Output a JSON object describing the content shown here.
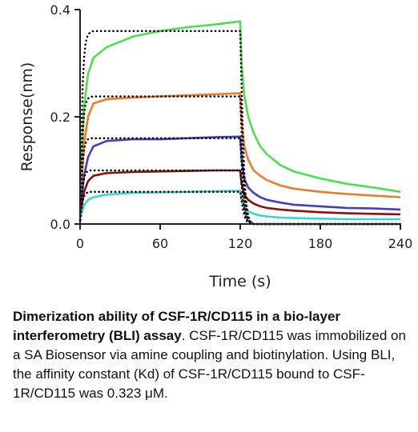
{
  "chart_data": {
    "type": "line",
    "xlabel": "Time (s)",
    "ylabel": "Response(nm)",
    "xlim": [
      0,
      240
    ],
    "ylim": [
      0,
      0.4
    ],
    "xticks": [
      "0",
      "60",
      "120",
      "180",
      "240"
    ],
    "yticks": [
      "0.0",
      "0.2",
      "0.4"
    ],
    "grid": false,
    "legend": "none",
    "series": [
      {
        "color": "#4de04d",
        "style": "solid",
        "x": [
          0,
          3,
          6,
          10,
          20,
          40,
          60,
          80,
          100,
          120,
          121,
          123,
          126,
          130,
          135,
          140,
          150,
          160,
          180,
          200,
          220,
          240
        ],
        "y": [
          0.05,
          0.22,
          0.28,
          0.31,
          0.33,
          0.35,
          0.36,
          0.367,
          0.372,
          0.378,
          0.3,
          0.24,
          0.2,
          0.17,
          0.145,
          0.13,
          0.11,
          0.098,
          0.085,
          0.075,
          0.068,
          0.06
        ]
      },
      {
        "color": "#f07a28",
        "style": "solid",
        "x": [
          0,
          3,
          6,
          10,
          20,
          40,
          60,
          80,
          100,
          120,
          121,
          123,
          126,
          130,
          135,
          140,
          150,
          160,
          180,
          200,
          220,
          240
        ],
        "y": [
          0.03,
          0.15,
          0.2,
          0.225,
          0.233,
          0.236,
          0.238,
          0.24,
          0.242,
          0.244,
          0.19,
          0.145,
          0.12,
          0.1,
          0.09,
          0.082,
          0.072,
          0.066,
          0.06,
          0.056,
          0.053,
          0.05
        ]
      },
      {
        "color": "#3f3fc4",
        "style": "solid",
        "x": [
          0,
          3,
          6,
          10,
          20,
          40,
          60,
          80,
          100,
          120,
          121,
          123,
          126,
          130,
          135,
          140,
          150,
          160,
          180,
          200,
          220,
          240
        ],
        "y": [
          0.02,
          0.09,
          0.125,
          0.145,
          0.155,
          0.158,
          0.158,
          0.16,
          0.162,
          0.163,
          0.12,
          0.085,
          0.068,
          0.058,
          0.05,
          0.045,
          0.04,
          0.036,
          0.033,
          0.03,
          0.029,
          0.027
        ]
      },
      {
        "color": "#8b1010",
        "style": "solid",
        "x": [
          0,
          3,
          6,
          10,
          20,
          40,
          60,
          80,
          100,
          120,
          121,
          123,
          126,
          130,
          135,
          140,
          150,
          160,
          180,
          200,
          220,
          240
        ],
        "y": [
          0.015,
          0.06,
          0.08,
          0.09,
          0.095,
          0.097,
          0.098,
          0.099,
          0.1,
          0.1,
          0.075,
          0.055,
          0.045,
          0.038,
          0.033,
          0.03,
          0.027,
          0.025,
          0.022,
          0.02,
          0.019,
          0.018
        ]
      },
      {
        "color": "#3fd4d4",
        "style": "solid",
        "x": [
          0,
          3,
          6,
          10,
          20,
          40,
          60,
          80,
          100,
          120,
          121,
          123,
          126,
          130,
          135,
          140,
          150,
          160,
          180,
          200,
          220,
          240
        ],
        "y": [
          0.01,
          0.035,
          0.045,
          0.05,
          0.055,
          0.058,
          0.059,
          0.06,
          0.061,
          0.062,
          0.045,
          0.032,
          0.024,
          0.019,
          0.016,
          0.014,
          0.012,
          0.011,
          0.01,
          0.009,
          0.009,
          0.009
        ]
      },
      {
        "color": "#000000",
        "style": "dotted",
        "x": [
          0,
          1,
          2,
          3,
          4,
          5,
          6,
          7,
          8,
          10,
          12,
          15,
          20,
          30,
          60,
          100,
          120,
          121,
          122,
          123,
          124,
          125,
          126,
          127,
          128,
          130,
          135,
          145,
          160,
          180,
          200,
          220,
          240
        ],
        "y": [
          0.0,
          0.16,
          0.26,
          0.31,
          0.335,
          0.347,
          0.353,
          0.356,
          0.358,
          0.36,
          0.36,
          0.36,
          0.36,
          0.36,
          0.36,
          0.36,
          0.36,
          0.26,
          0.17,
          0.1,
          0.055,
          0.03,
          0.015,
          0.008,
          0.004,
          0.0,
          0.0,
          0.0,
          0.0,
          0.0,
          0.0,
          0.0,
          0.0
        ]
      },
      {
        "color": "#000000",
        "style": "dotted",
        "x": [
          0,
          1,
          2,
          3,
          4,
          5,
          6,
          7,
          8,
          10,
          12,
          15,
          20,
          30,
          60,
          100,
          120,
          121,
          122,
          123,
          124,
          125,
          126,
          127,
          128,
          130,
          135,
          145,
          160,
          180,
          200,
          220,
          240
        ],
        "y": [
          0.0,
          0.105,
          0.17,
          0.205,
          0.222,
          0.23,
          0.234,
          0.236,
          0.237,
          0.238,
          0.238,
          0.238,
          0.238,
          0.238,
          0.238,
          0.238,
          0.238,
          0.17,
          0.11,
          0.066,
          0.037,
          0.02,
          0.01,
          0.005,
          0.003,
          0.0,
          0.0,
          0.0,
          0.0,
          0.0,
          0.0,
          0.0,
          0.0
        ]
      },
      {
        "color": "#000000",
        "style": "dotted",
        "x": [
          0,
          1,
          2,
          3,
          4,
          5,
          6,
          7,
          8,
          10,
          12,
          15,
          20,
          30,
          60,
          100,
          120,
          121,
          122,
          123,
          124,
          125,
          126,
          127,
          128,
          130,
          135,
          145,
          160,
          180,
          200,
          220,
          240
        ],
        "y": [
          0.0,
          0.07,
          0.115,
          0.138,
          0.15,
          0.156,
          0.158,
          0.159,
          0.16,
          0.16,
          0.16,
          0.16,
          0.16,
          0.16,
          0.16,
          0.16,
          0.16,
          0.115,
          0.075,
          0.045,
          0.025,
          0.013,
          0.007,
          0.004,
          0.002,
          0.0,
          0.0,
          0.0,
          0.0,
          0.0,
          0.0,
          0.0,
          0.0
        ]
      },
      {
        "color": "#000000",
        "style": "dotted",
        "x": [
          0,
          1,
          2,
          3,
          4,
          5,
          6,
          7,
          8,
          10,
          12,
          15,
          20,
          30,
          60,
          100,
          120,
          121,
          122,
          123,
          124,
          125,
          126,
          127,
          128,
          130,
          135,
          145,
          160,
          180,
          200,
          220,
          240
        ],
        "y": [
          0.0,
          0.045,
          0.072,
          0.086,
          0.094,
          0.097,
          0.099,
          0.1,
          0.1,
          0.1,
          0.1,
          0.1,
          0.1,
          0.1,
          0.1,
          0.1,
          0.1,
          0.072,
          0.047,
          0.028,
          0.016,
          0.008,
          0.004,
          0.002,
          0.001,
          0.0,
          0.0,
          0.0,
          0.0,
          0.0,
          0.0,
          0.0,
          0.0
        ]
      },
      {
        "color": "#000000",
        "style": "dotted",
        "x": [
          0,
          1,
          2,
          3,
          4,
          5,
          6,
          7,
          8,
          10,
          12,
          15,
          20,
          30,
          60,
          100,
          120,
          121,
          122,
          123,
          124,
          125,
          126,
          127,
          128,
          130,
          135,
          145,
          160,
          180,
          200,
          220,
          240
        ],
        "y": [
          0.0,
          0.027,
          0.043,
          0.052,
          0.056,
          0.058,
          0.059,
          0.06,
          0.06,
          0.06,
          0.06,
          0.06,
          0.06,
          0.06,
          0.06,
          0.06,
          0.06,
          0.043,
          0.028,
          0.017,
          0.009,
          0.005,
          0.003,
          0.001,
          0.001,
          0.0,
          0.0,
          0.0,
          0.0,
          0.0,
          0.0,
          0.0,
          0.0
        ]
      }
    ]
  },
  "caption": {
    "bold": "Dimerization ability of CSF-1R/CD115 in a bio-layer interferometry (BLI) assay",
    "text": ". CSF-1R/CD115 was immobilized on a SA Biosensor via amine coupling and biotinylation. Using BLI, the affinity constant (Kd) of CSF-1R/CD115 bound to CSF-1R/CD115 was 0.323 μM."
  }
}
